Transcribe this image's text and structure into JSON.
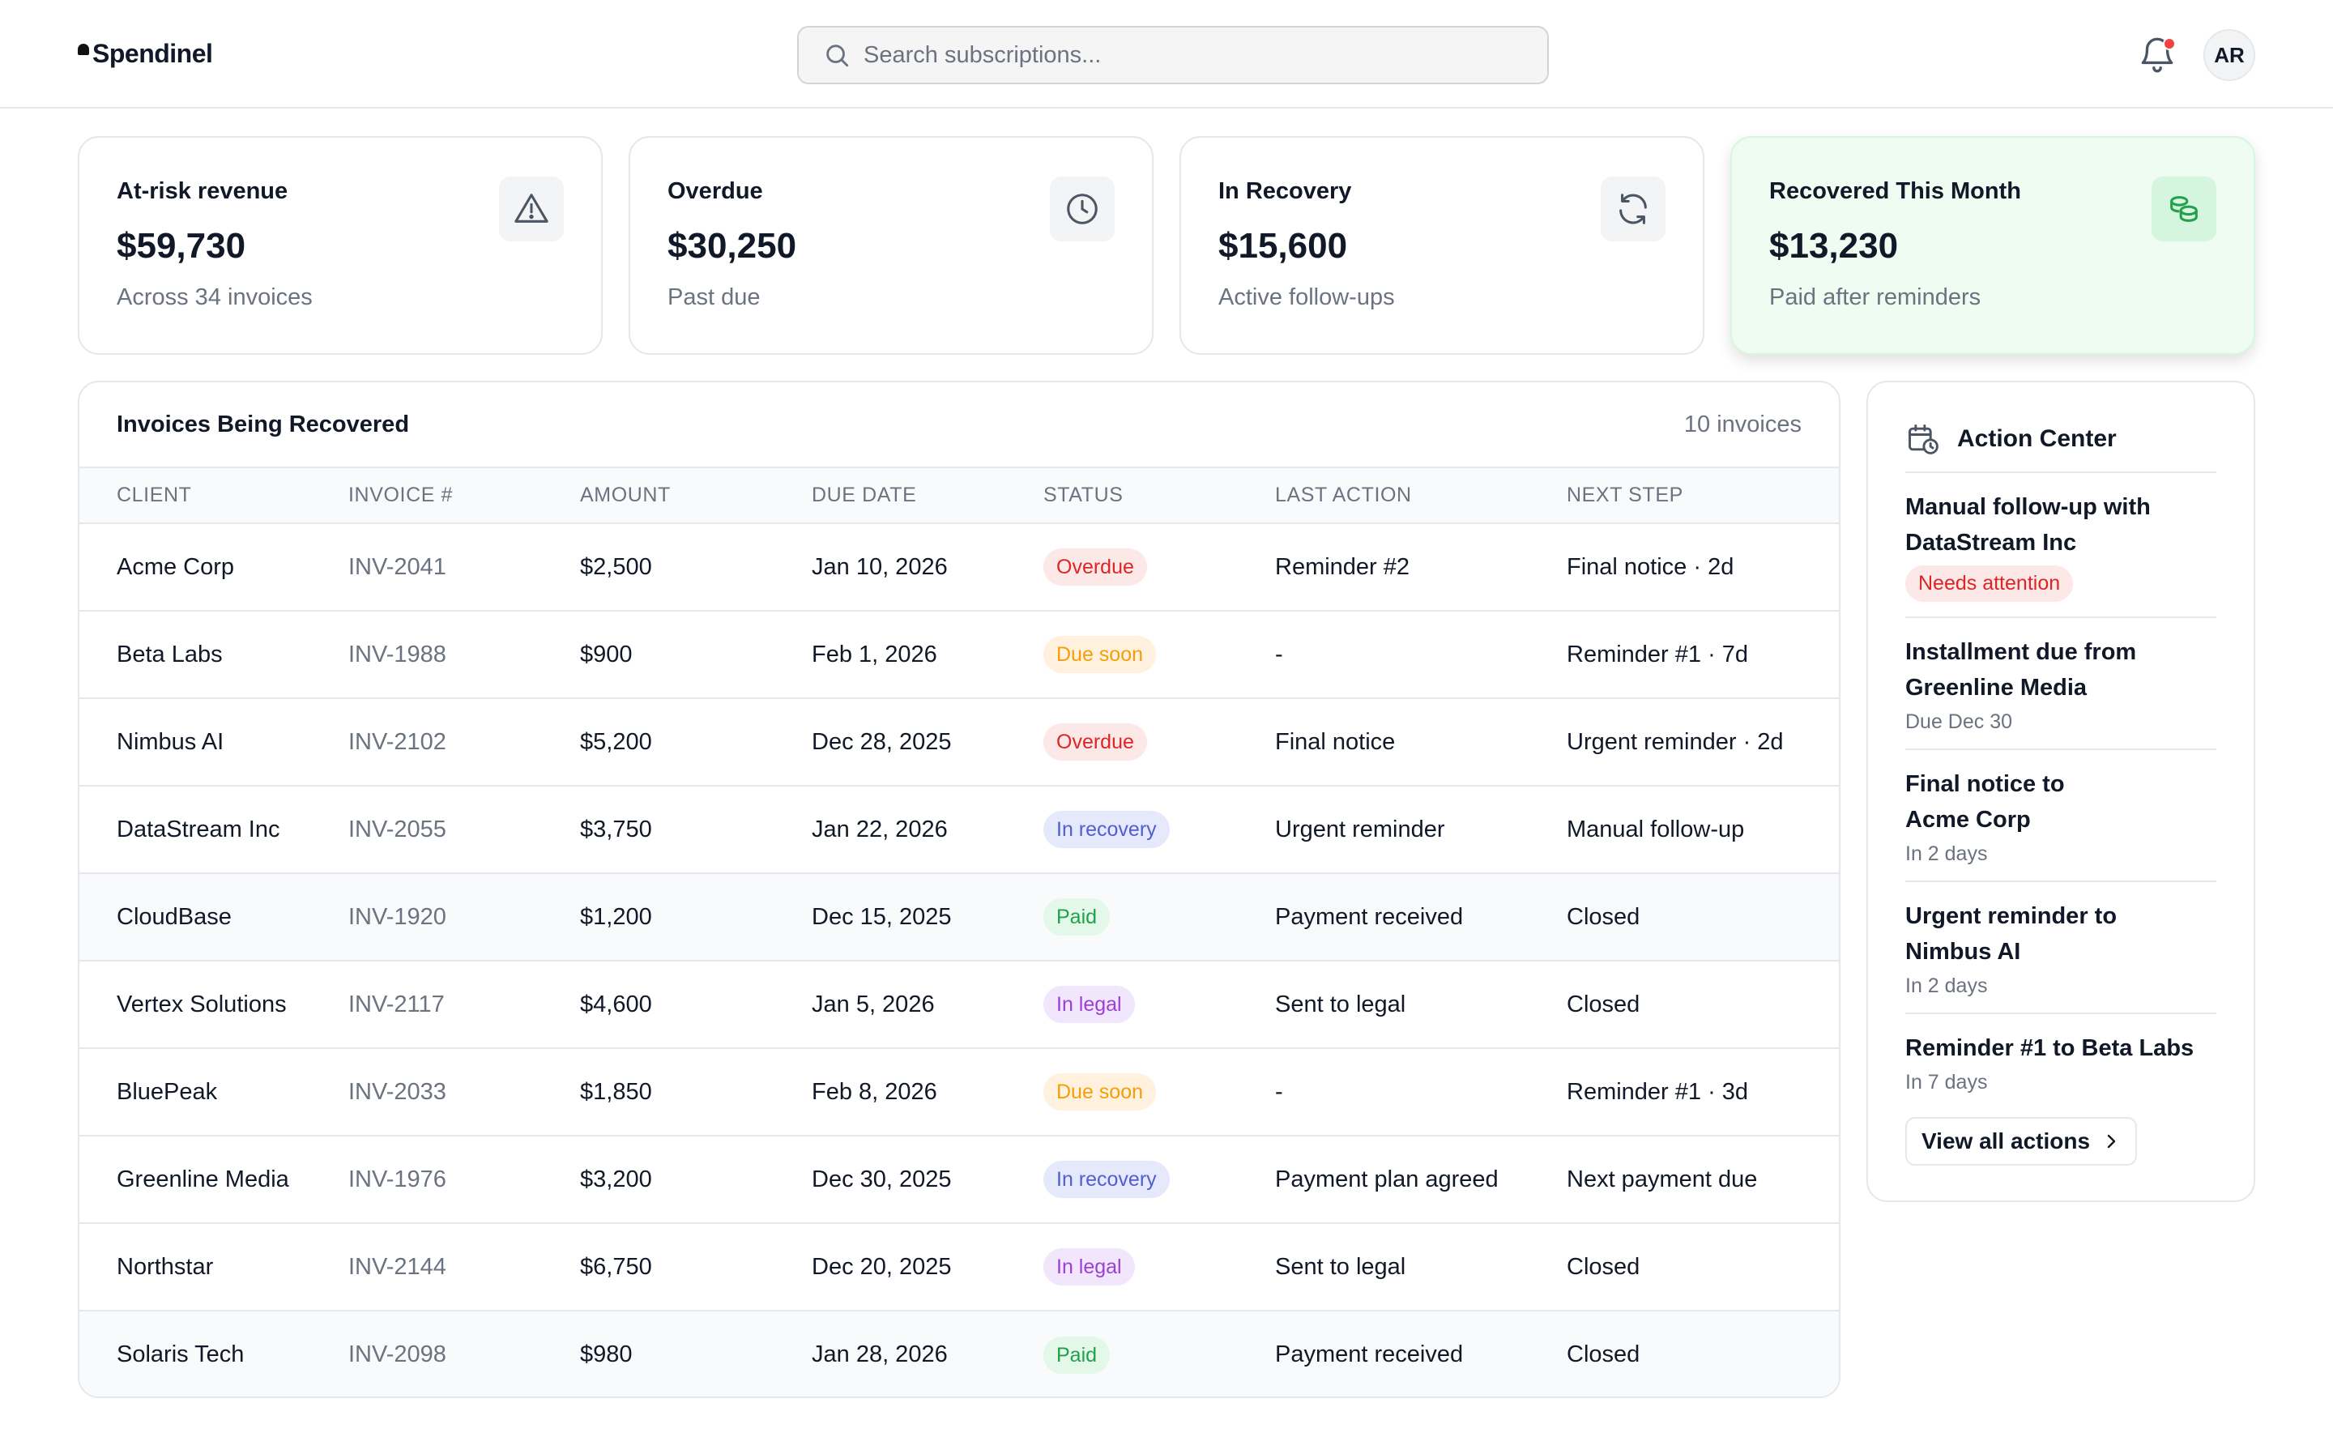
{
  "app": {
    "name": "Spendinel"
  },
  "search": {
    "placeholder": "Search subscriptions..."
  },
  "user": {
    "initials": "AR"
  },
  "notifications": {
    "has_unread": true
  },
  "kpis": [
    {
      "title": "At-risk revenue",
      "value": "$59,730",
      "sub": "Across 34 invoices",
      "icon": "warning-icon"
    },
    {
      "title": "Overdue",
      "value": "$30,250",
      "sub": "Past due",
      "icon": "clock-icon"
    },
    {
      "title": "In Recovery",
      "value": "$15,600",
      "sub": "Active follow-ups",
      "icon": "refresh-icon"
    },
    {
      "title": "Recovered This Month",
      "value": "$13,230",
      "sub": "Paid after reminders",
      "icon": "coins-icon"
    }
  ],
  "invoices": {
    "title": "Invoices Being Recovered",
    "count": "10 invoices",
    "columns": [
      "CLIENT",
      "INVOICE #",
      "AMOUNT",
      "DUE DATE",
      "STATUS",
      "LAST ACTION",
      "NEXT STEP"
    ],
    "rows": [
      {
        "client": "Acme Corp",
        "invoice": "INV-2041",
        "amount": "$2,500",
        "due": "Jan 10, 2026",
        "status": "Overdue",
        "last_action": "Reminder #2",
        "next_step": "Final notice · 2d"
      },
      {
        "client": "Beta Labs",
        "invoice": "INV-1988",
        "amount": "$900",
        "due": "Feb 1, 2026",
        "status": "Due soon",
        "last_action": "-",
        "next_step": "Reminder #1 · 7d"
      },
      {
        "client": "Nimbus AI",
        "invoice": "INV-2102",
        "amount": "$5,200",
        "due": "Dec 28, 2025",
        "status": "Overdue",
        "last_action": "Final notice",
        "next_step": "Urgent reminder · 2d"
      },
      {
        "client": "DataStream Inc",
        "invoice": "INV-2055",
        "amount": "$3,750",
        "due": "Jan 22, 2026",
        "status": "In recovery",
        "last_action": "Urgent reminder",
        "next_step": "Manual follow-up"
      },
      {
        "client": "CloudBase",
        "invoice": "INV-1920",
        "amount": "$1,200",
        "due": "Dec 15, 2025",
        "status": "Paid",
        "last_action": "Payment received",
        "next_step": "Closed"
      },
      {
        "client": "Vertex Solutions",
        "invoice": "INV-2117",
        "amount": "$4,600",
        "due": "Jan 5, 2026",
        "status": "In legal",
        "last_action": "Sent to legal",
        "next_step": "Closed"
      },
      {
        "client": "BluePeak",
        "invoice": "INV-2033",
        "amount": "$1,850",
        "due": "Feb 8, 2026",
        "status": "Due soon",
        "last_action": "-",
        "next_step": "Reminder #1 · 3d"
      },
      {
        "client": "Greenline Media",
        "invoice": "INV-1976",
        "amount": "$3,200",
        "due": "Dec 30, 2025",
        "status": "In recovery",
        "last_action": "Payment plan agreed",
        "next_step": "Next payment due"
      },
      {
        "client": "Northstar",
        "invoice": "INV-2144",
        "amount": "$6,750",
        "due": "Dec 20, 2025",
        "status": "In legal",
        "last_action": "Sent to legal",
        "next_step": "Closed"
      },
      {
        "client": "Solaris Tech",
        "invoice": "INV-2098",
        "amount": "$980",
        "due": "Jan 28, 2026",
        "status": "Paid",
        "last_action": "Payment received",
        "next_step": "Closed"
      }
    ]
  },
  "status_colors": {
    "Overdue": "#dc2626",
    "Due soon": "#f59e0b",
    "In recovery": "#4f5fd1",
    "Paid": "#22a04b",
    "In legal": "#9d3fd6"
  },
  "action_center": {
    "title": "Action Center",
    "items": [
      {
        "title": "Manual follow-up with DataStream Inc",
        "badge": "Needs attention"
      },
      {
        "title": "Installment due from Greenline Media",
        "sub": "Due Dec 30"
      },
      {
        "title": "Final notice to Acme Corp",
        "sub": "In 2 days"
      },
      {
        "title": "Urgent reminder to Nimbus AI",
        "sub": "In 2 days"
      },
      {
        "title": "Reminder #1 to Beta Labs",
        "sub": "In 7 days"
      }
    ],
    "view_all_label": "View all actions"
  }
}
